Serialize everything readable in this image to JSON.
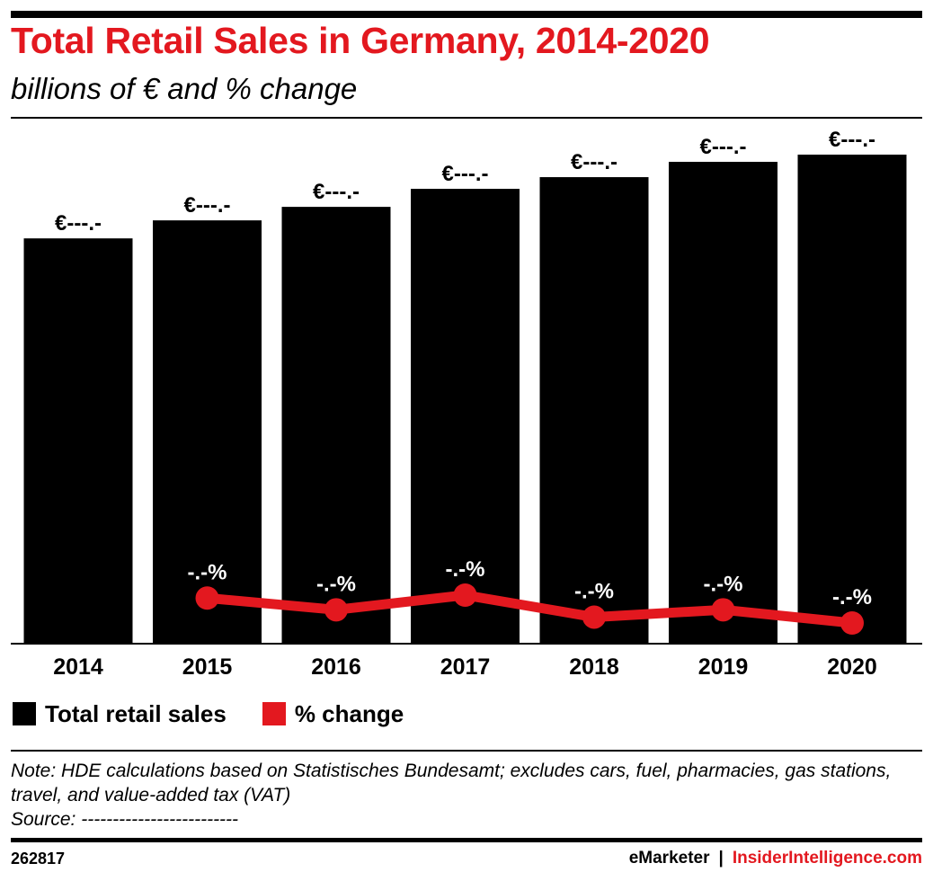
{
  "header": {
    "title": "Total Retail Sales in Germany, 2014-2020",
    "subtitle": "billions of € and % change"
  },
  "colors": {
    "accent": "#e3181f",
    "bar": "#000000",
    "background": "#ffffff"
  },
  "chart_data": {
    "type": "bar",
    "title": "Total Retail Sales in Germany, 2014-2020",
    "subtitle": "billions of € and % change",
    "categories": [
      "2014",
      "2015",
      "2016",
      "2017",
      "2018",
      "2019",
      "2020"
    ],
    "grid": false,
    "legend_position": "bottom-left",
    "ylim": [
      0,
      543
    ],
    "series": [
      {
        "name": "Total retail sales",
        "type": "bar",
        "color": "#000000",
        "values": [
          450,
          470,
          485,
          505,
          518,
          535,
          543
        ],
        "labels": [
          "€---.-",
          "€---.-",
          "€---.-",
          "€---.-",
          "€---.-",
          "€---.-",
          "€---.-"
        ]
      },
      {
        "name": "% change",
        "type": "line",
        "color": "#e3181f",
        "values": [
          null,
          2.9,
          2.1,
          3.1,
          1.6,
          2.1,
          1.2
        ],
        "labels": [
          "",
          "-.-%",
          "-.-%",
          "-.-%",
          "-.-%",
          "-.-%",
          "-.-%"
        ]
      }
    ]
  },
  "note": {
    "text": "Note: HDE calculations based on Statistisches Bundesamt; excludes cars, fuel, pharmacies, gas stations, travel, and value-added tax (VAT)",
    "source": "Source: -------------------------"
  },
  "footer": {
    "chart_id": "262817",
    "brand_emarketer": "eMarketer",
    "separator": "|",
    "brand_insider": "InsiderIntelligence.com"
  }
}
